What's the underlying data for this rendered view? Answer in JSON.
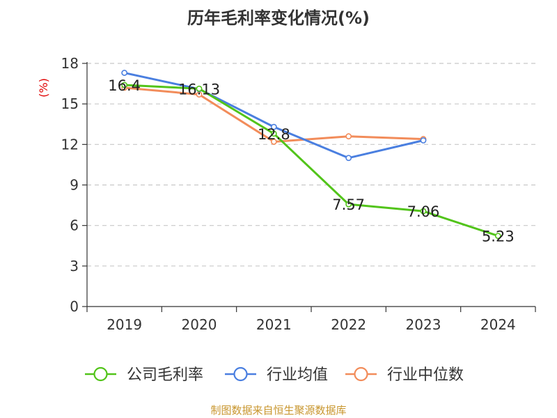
{
  "chart_data": {
    "type": "line",
    "title": "历年毛利率变化情况(%)",
    "ylabel": "(%)",
    "xlabel": "",
    "categories": [
      "2019",
      "2020",
      "2021",
      "2022",
      "2023",
      "2024"
    ],
    "ylim": [
      0,
      18
    ],
    "yticks": [
      0,
      3,
      6,
      9,
      12,
      15,
      18
    ],
    "grid": true,
    "legend_position": "bottom",
    "series": [
      {
        "name": "公司毛利率",
        "color": "#52c41a",
        "values": [
          16.4,
          16.13,
          12.8,
          7.57,
          7.06,
          5.23
        ],
        "labels": [
          "16.4",
          "16.13",
          "12.8",
          "7.57",
          "7.06",
          "5.23"
        ]
      },
      {
        "name": "行业均值",
        "color": "#4a7fe0",
        "values": [
          17.3,
          16.1,
          13.3,
          11.0,
          12.3,
          null
        ]
      },
      {
        "name": "行业中位数",
        "color": "#f28c5a",
        "values": [
          16.2,
          15.7,
          12.2,
          12.6,
          12.4,
          null
        ]
      }
    ],
    "source": "制图数据来自恒生聚源数据库"
  }
}
